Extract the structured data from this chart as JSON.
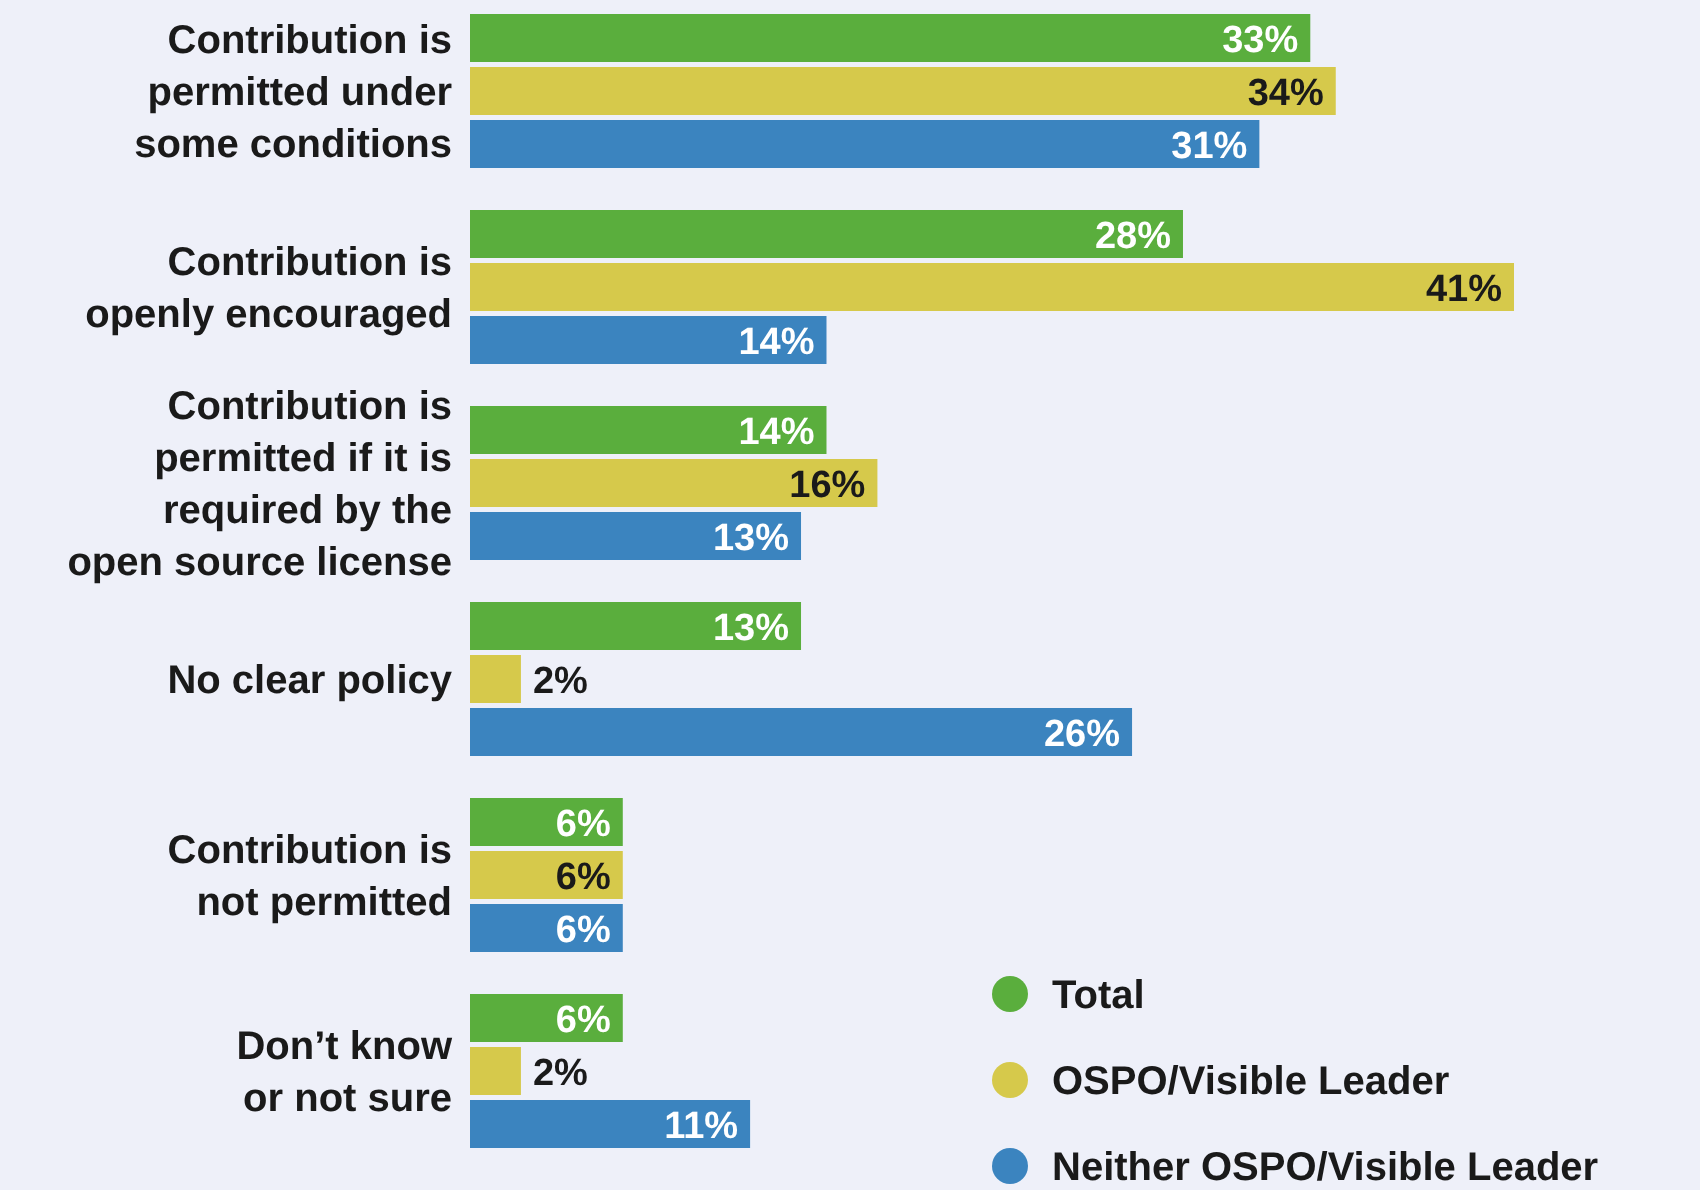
{
  "chart_data": {
    "type": "bar",
    "orientation": "horizontal",
    "legend": "bottom right",
    "categories": [
      "Contribution is\npermitted under\nsome conditions",
      "Contribution is\nopenly encouraged",
      "Contribution is\npermitted if it is\nrequired by the\nopen source license",
      "No clear policy",
      "Contribution is\nnot permitted",
      "Don’t know\nor not sure"
    ],
    "series": [
      {
        "name": "Total",
        "color": "#5aae3d",
        "values": [
          33,
          28,
          14,
          13,
          6,
          6
        ],
        "value_labels": [
          "33%",
          "28%",
          "14%",
          "13%",
          "6%",
          "6%"
        ]
      },
      {
        "name": "OSPO/Visible Leader",
        "color": "#d6c94b",
        "values": [
          34,
          41,
          16,
          2,
          6,
          2
        ],
        "value_labels": [
          "34%",
          "41%",
          "16%",
          "2%",
          "6%",
          "2%"
        ]
      },
      {
        "name": "Neither OSPO/Visible Leader",
        "color": "#3b84bf",
        "values": [
          31,
          14,
          13,
          26,
          6,
          11
        ],
        "value_labels": [
          "31%",
          "14%",
          "13%",
          "26%",
          "6%",
          "11%"
        ]
      }
    ]
  }
}
